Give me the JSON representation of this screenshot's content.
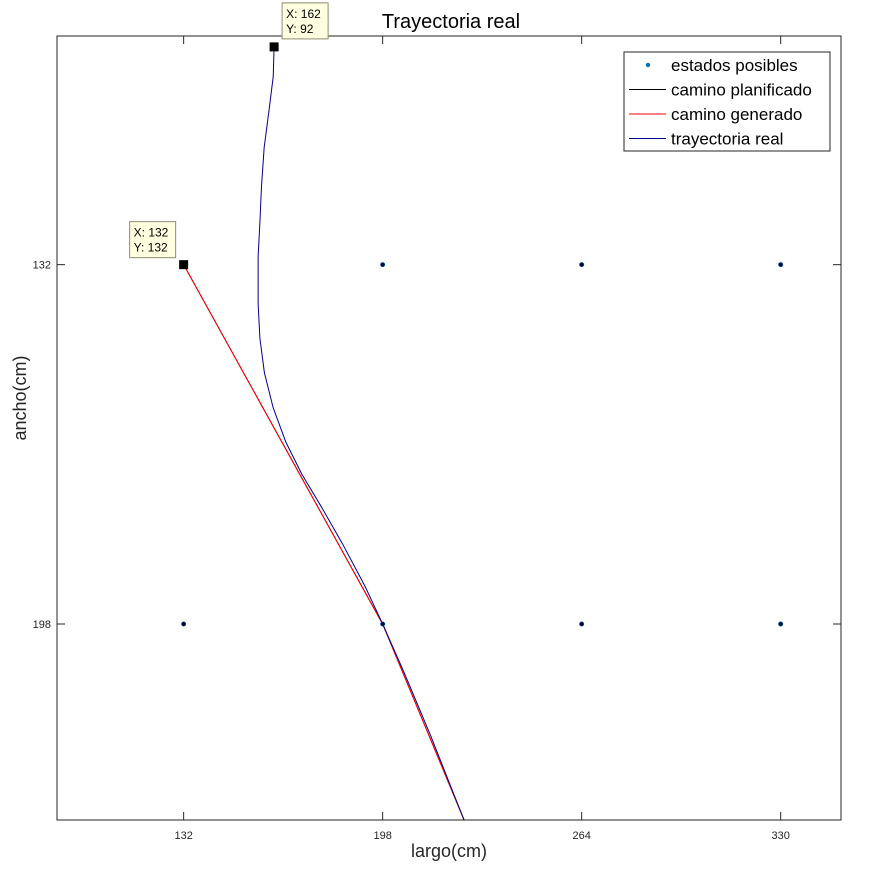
{
  "chart_data": {
    "type": "line",
    "title": "Trayectoria real",
    "xlabel": "largo(cm)",
    "ylabel": "ancho(cm)",
    "xlim": [
      90,
      350
    ],
    "ylim": [
      90,
      234
    ],
    "y_reversed": true,
    "x_ticks": [
      132,
      198,
      264,
      330
    ],
    "y_ticks": [
      132,
      198
    ],
    "grid": false,
    "legend_position": "top-right",
    "series": [
      {
        "name": "estados posibles",
        "kind": "scatter",
        "color": "#0072BD",
        "x": [
          198,
          264,
          330,
          132,
          198,
          264,
          330
        ],
        "y": [
          132,
          132,
          132,
          198,
          198,
          198,
          198
        ]
      },
      {
        "name": "camino planificado",
        "kind": "line",
        "color": "#000000",
        "x": [
          132,
          198,
          225
        ],
        "y": [
          132,
          198,
          234
        ]
      },
      {
        "name": "camino generado",
        "kind": "line",
        "color": "#FF0000",
        "x": [
          132,
          198,
          225
        ],
        "y": [
          132,
          198,
          234
        ]
      },
      {
        "name": "trayectoria real",
        "kind": "line",
        "color": "#00008B",
        "x": [
          162,
          161.7,
          160.3,
          158.7,
          157.8,
          157.3,
          156.7,
          156.7,
          156.7,
          157.3,
          158.8,
          161.7,
          165.9,
          171.2,
          177.7,
          184.9,
          192.0,
          198.0,
          205.1,
          213.9,
          225.0
        ],
        "y": [
          92,
          97.5,
          103.7,
          110.5,
          117.8,
          124.1,
          130.5,
          134.9,
          139.2,
          145.6,
          151.9,
          158.3,
          164.6,
          170.5,
          176.5,
          183.5,
          190.9,
          198.0,
          206.9,
          218.5,
          234.0
        ]
      }
    ],
    "datatips": [
      {
        "x": 162,
        "y": 92,
        "x_text": "X: 162",
        "y_text": "Y: 92"
      },
      {
        "x": 132,
        "y": 132,
        "x_text": "X: 132",
        "y_text": "Y: 132"
      }
    ]
  }
}
